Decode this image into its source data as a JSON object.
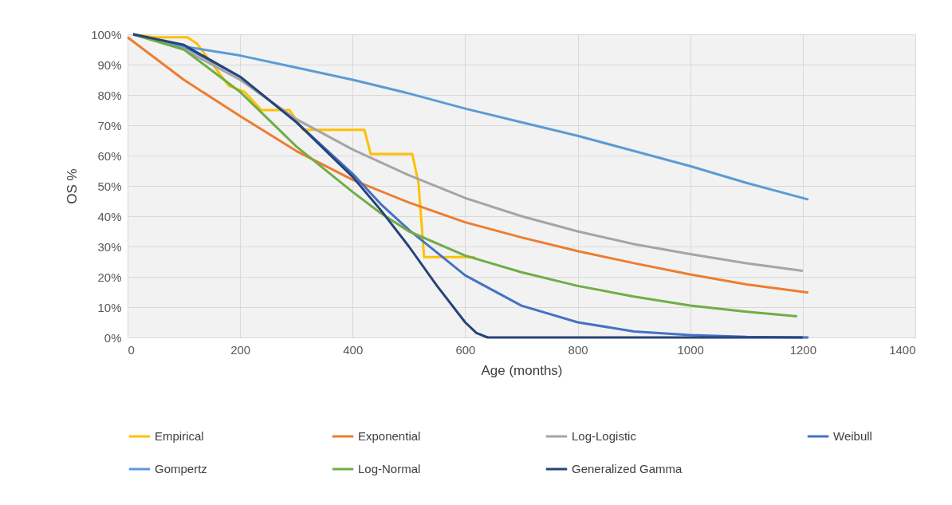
{
  "chart_data": {
    "type": "line",
    "xlabel": "Age (months)",
    "ylabel": "OS %",
    "xlim": [
      0,
      1400
    ],
    "xticks": [
      0,
      200,
      400,
      600,
      800,
      1000,
      1200,
      1400
    ],
    "ylim": [
      0,
      100
    ],
    "yticks": [
      {
        "value": 0,
        "label": "0%"
      },
      {
        "value": 10,
        "label": "10%"
      },
      {
        "value": 20,
        "label": "20%"
      },
      {
        "value": 30,
        "label": "30%"
      },
      {
        "value": 40,
        "label": "40%"
      },
      {
        "value": 50,
        "label": "50%"
      },
      {
        "value": 60,
        "label": "60%"
      },
      {
        "value": 70,
        "label": "70%"
      },
      {
        "value": 80,
        "label": "80%"
      },
      {
        "value": 90,
        "label": "90%"
      },
      {
        "value": 100,
        "label": "100%"
      }
    ],
    "grid": true,
    "legend": "bottom",
    "series": [
      {
        "name": "Empirical",
        "color": "#ffc000",
        "x": [
          10,
          47,
          106,
          123,
          180,
          208,
          238,
          288,
          312,
          421,
          432,
          506,
          517,
          527,
          618
        ],
        "values": [
          100,
          99,
          99,
          97,
          83,
          81,
          75,
          75,
          68.5,
          68.5,
          60.5,
          60.5,
          51,
          26.5,
          26.5
        ]
      },
      {
        "name": "Exponential",
        "color": "#ed7d31",
        "x": [
          0,
          100,
          200,
          300,
          400,
          500,
          600,
          700,
          800,
          900,
          1000,
          1100,
          1210
        ],
        "values": [
          99,
          85,
          73,
          61.5,
          52,
          44.5,
          38,
          33,
          28.5,
          24.5,
          20.8,
          17.5,
          14.8
        ]
      },
      {
        "name": "Log-Logistic",
        "color": "#a5a5a5",
        "x": [
          10,
          100,
          200,
          300,
          400,
          500,
          600,
          700,
          800,
          900,
          1000,
          1100,
          1200
        ],
        "values": [
          100,
          95,
          85,
          72,
          62,
          53.5,
          46,
          40,
          35,
          30.8,
          27.5,
          24.5,
          22
        ]
      },
      {
        "name": "Weibull",
        "color": "#4472c4",
        "x": [
          10,
          100,
          200,
          300,
          400,
          450,
          500,
          600,
          700,
          800,
          900,
          1000,
          1100,
          1210
        ],
        "values": [
          100,
          96,
          86,
          71,
          54,
          44,
          35.5,
          20.5,
          10.5,
          5,
          2,
          0.8,
          0.2,
          0
        ]
      },
      {
        "name": "Gompertz",
        "color": "#5b9bd5",
        "x": [
          10,
          100,
          200,
          300,
          400,
          500,
          600,
          700,
          800,
          900,
          1000,
          1100,
          1210
        ],
        "values": [
          100,
          96,
          93,
          89,
          85,
          80.5,
          75.5,
          71,
          66.5,
          61.5,
          56.5,
          51,
          45.5
        ]
      },
      {
        "name": "Log-Normal",
        "color": "#70ad47",
        "x": [
          10,
          100,
          200,
          300,
          400,
          450,
          500,
          600,
          700,
          800,
          900,
          1000,
          1100,
          1190
        ],
        "values": [
          100,
          95,
          81,
          63,
          48,
          41,
          35,
          27,
          21.5,
          17,
          13.5,
          10.5,
          8.5,
          7
        ]
      },
      {
        "name": "Generalized Gamma",
        "color": "#264478",
        "x": [
          10,
          100,
          200,
          300,
          400,
          450,
          500,
          550,
          600,
          620,
          640,
          800,
          1000,
          1200
        ],
        "values": [
          100,
          96.5,
          86,
          71,
          53,
          42,
          30,
          17,
          5,
          1.5,
          0,
          0,
          0,
          0
        ]
      }
    ]
  }
}
